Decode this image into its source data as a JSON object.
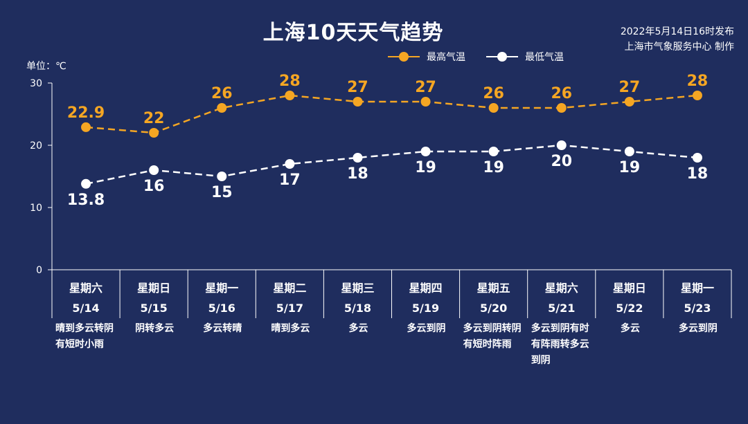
{
  "header": {
    "title": "上海10天天气趋势",
    "issued_line1": "2022年5月14日16时发布",
    "issued_line2": "上海市气象服务中心 制作"
  },
  "unit_label": "单位：℃",
  "colors": {
    "high": "#f5a623",
    "low": "#ffffff",
    "background": "#1f2d5e"
  },
  "chart_data": {
    "type": "line",
    "title": "上海10天天气趋势",
    "ylabel": "单位：℃",
    "ylim": [
      0,
      30
    ],
    "yticks": [
      0,
      10,
      20,
      30
    ],
    "categories": [
      {
        "weekday": "星期六",
        "date": "5/14",
        "weather": "晴到多云转阴有短时小雨"
      },
      {
        "weekday": "星期日",
        "date": "5/15",
        "weather": "阴转多云"
      },
      {
        "weekday": "星期一",
        "date": "5/16",
        "weather": "多云转晴"
      },
      {
        "weekday": "星期二",
        "date": "5/17",
        "weather": "晴到多云"
      },
      {
        "weekday": "星期三",
        "date": "5/18",
        "weather": "多云"
      },
      {
        "weekday": "星期四",
        "date": "5/19",
        "weather": "多云到阴"
      },
      {
        "weekday": "星期五",
        "date": "5/20",
        "weather": "多云到阴转阴有短时阵雨"
      },
      {
        "weekday": "星期六",
        "date": "5/21",
        "weather": "多云到阴有时有阵雨转多云到阴"
      },
      {
        "weekday": "星期日",
        "date": "5/22",
        "weather": "多云"
      },
      {
        "weekday": "星期一",
        "date": "5/23",
        "weather": "多云到阴"
      }
    ],
    "series": [
      {
        "name": "最高气温",
        "color": "#f5a623",
        "values": [
          22.9,
          22,
          26,
          28,
          27,
          27,
          26,
          26,
          27,
          28
        ],
        "labels": [
          "22.9",
          "22",
          "26",
          "28",
          "27",
          "27",
          "26",
          "26",
          "27",
          "28"
        ]
      },
      {
        "name": "最低气温",
        "color": "#ffffff",
        "values": [
          13.8,
          16,
          15,
          17,
          18,
          19,
          19,
          20,
          19,
          18
        ],
        "labels": [
          "13.8",
          "16",
          "15",
          "17",
          "18",
          "19",
          "19",
          "20",
          "19",
          "18"
        ]
      }
    ],
    "grid": false,
    "legend": "top-right"
  }
}
